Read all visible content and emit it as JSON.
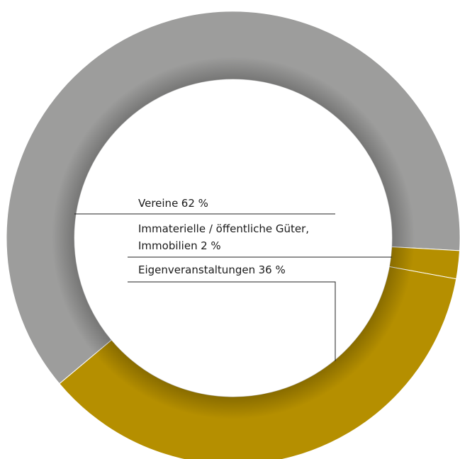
{
  "chart_data": {
    "type": "donut",
    "categories": [
      "Vereine",
      "Immaterielle / öffentliche Güter, Immobilien",
      "Eigenveranstaltungen"
    ],
    "values": [
      62,
      2,
      36
    ],
    "value_labels": [
      "62 %",
      "2 %",
      "36 %"
    ],
    "colors": [
      "#9d9d9c",
      "#b58f00",
      "#b58f00"
    ]
  }
}
